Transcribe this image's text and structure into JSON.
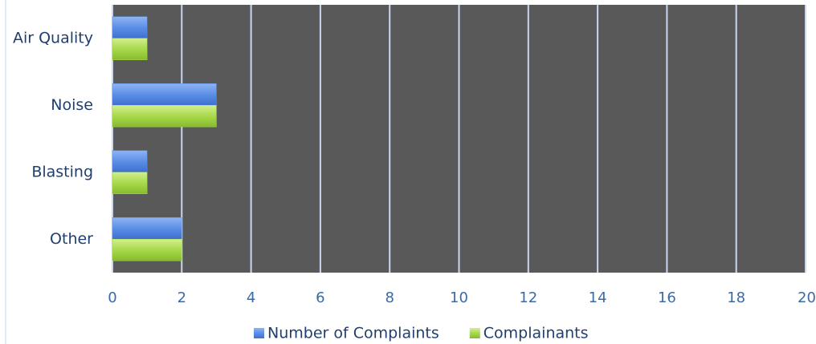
{
  "chart_data": {
    "type": "bar",
    "orientation": "horizontal",
    "categories": [
      "Air Quality",
      "Noise",
      "Blasting",
      "Other"
    ],
    "series": [
      {
        "name": "Number of Complaints",
        "color": "#5b8fe6",
        "values": [
          1,
          3,
          1,
          2
        ]
      },
      {
        "name": "Complainants",
        "color": "#a8d94c",
        "values": [
          1,
          3,
          1,
          2
        ]
      }
    ],
    "xlim": [
      0,
      20
    ],
    "xticks": [
      0,
      2,
      4,
      6,
      8,
      10,
      12,
      14,
      16,
      18,
      20
    ],
    "grid": true,
    "legend": "bottom",
    "plot_background": "#595959"
  }
}
